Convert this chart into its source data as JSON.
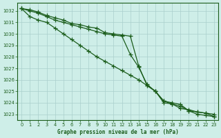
{
  "title": "Graphe pression niveau de la mer (hPa)",
  "bg_color": "#ceeee8",
  "grid_color": "#aacfcc",
  "line_color": "#1a5c1a",
  "xlim": [
    -0.5,
    23.5
  ],
  "ylim": [
    1022.5,
    1032.7
  ],
  "xticks": [
    0,
    1,
    2,
    3,
    4,
    5,
    6,
    7,
    8,
    9,
    10,
    11,
    12,
    13,
    14,
    15,
    16,
    17,
    18,
    19,
    20,
    21,
    22,
    23
  ],
  "yticks": [
    1023,
    1024,
    1025,
    1026,
    1027,
    1028,
    1029,
    1030,
    1031,
    1032
  ],
  "hours": [
    0,
    1,
    2,
    3,
    4,
    5,
    6,
    7,
    8,
    9,
    10,
    11,
    12,
    13,
    14,
    15,
    16,
    17,
    18,
    19,
    20,
    21,
    22,
    23
  ],
  "line_slow": [
    1032.2,
    1032.1,
    1031.9,
    1031.6,
    1031.4,
    1031.2,
    1030.9,
    1030.8,
    1030.6,
    1030.5,
    1030.1,
    1030.0,
    1029.9,
    1029.8,
    1027.2,
    1025.5,
    1025.0,
    1024.0,
    1023.9,
    1023.5,
    1023.4,
    1023.2,
    1023.1,
    1023.0
  ],
  "line_mid": [
    1032.2,
    1032.0,
    1031.8,
    1031.5,
    1031.2,
    1031.0,
    1030.8,
    1030.6,
    1030.4,
    1030.2,
    1030.0,
    1029.9,
    1029.8,
    1028.2,
    1027.1,
    1025.6,
    1025.0,
    1024.15,
    1024.0,
    1023.85,
    1023.3,
    1023.2,
    1023.1,
    1022.8
  ],
  "line_fast": [
    1032.2,
    1031.5,
    1031.2,
    1031.0,
    1030.5,
    1030.0,
    1029.5,
    1029.0,
    1028.5,
    1028.0,
    1027.6,
    1027.2,
    1026.8,
    1026.4,
    1026.0,
    1025.5,
    1025.0,
    1024.15,
    1023.9,
    1023.7,
    1023.3,
    1023.0,
    1022.9,
    1022.8
  ]
}
